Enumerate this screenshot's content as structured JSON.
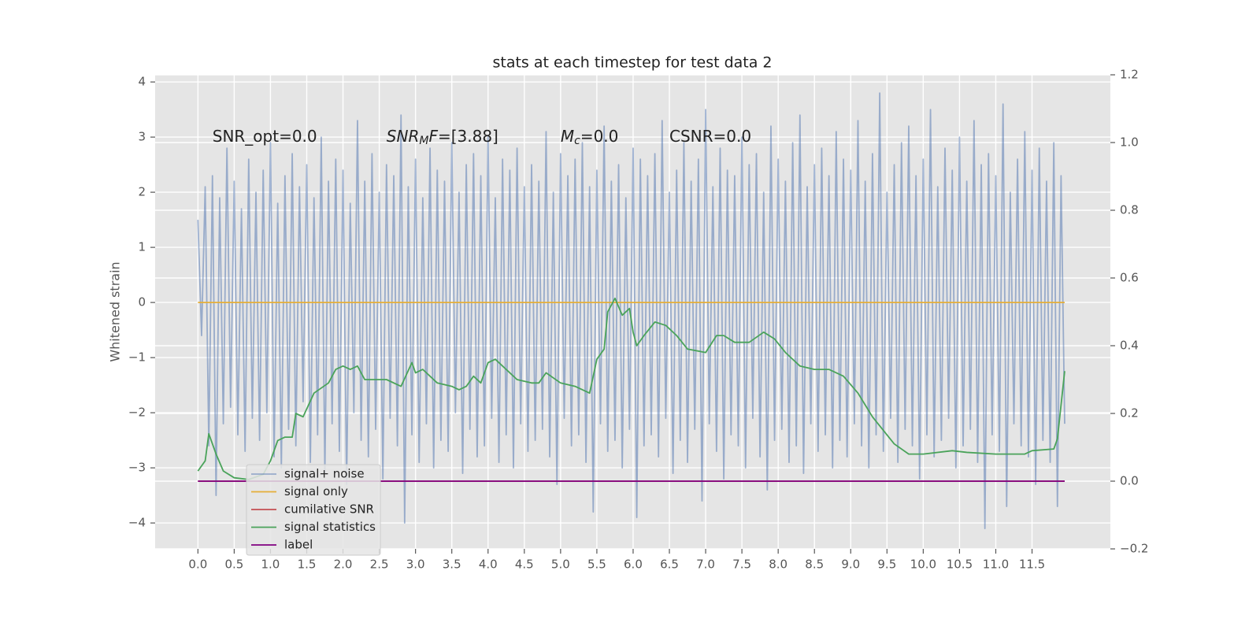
{
  "chart_data": {
    "type": "line",
    "title": "stats at each timestep for test data 2",
    "ylabel": "Whitened strain",
    "xlim": [
      -0.59,
      12.58
    ],
    "ylim": [
      -4.47,
      4.13
    ],
    "y2lim": [
      -0.2,
      1.2
    ],
    "xticks": [
      {
        "value": 0,
        "label": "0.0"
      },
      {
        "value": 0.5,
        "label": "0.5"
      },
      {
        "value": 1,
        "label": "1.0"
      },
      {
        "value": 1.5,
        "label": "1.5"
      },
      {
        "value": 2,
        "label": "2.0"
      },
      {
        "value": 2.5,
        "label": "2.5"
      },
      {
        "value": 3,
        "label": "3.0"
      },
      {
        "value": 3.5,
        "label": "3.5"
      },
      {
        "value": 4,
        "label": "4.0"
      },
      {
        "value": 4.5,
        "label": "4.5"
      },
      {
        "value": 5,
        "label": "5.0"
      },
      {
        "value": 5.5,
        "label": "5.5"
      },
      {
        "value": 6,
        "label": "6.0"
      },
      {
        "value": 6.5,
        "label": "6.5"
      },
      {
        "value": 7,
        "label": "7.0"
      },
      {
        "value": 7.5,
        "label": "7.5"
      },
      {
        "value": 8,
        "label": "8.0"
      },
      {
        "value": 8.5,
        "label": "8.5"
      },
      {
        "value": 9,
        "label": "9.0"
      },
      {
        "value": 9.5,
        "label": "9.5"
      },
      {
        "value": 10,
        "label": "10.0"
      },
      {
        "value": 10.5,
        "label": "10.5"
      },
      {
        "value": 11,
        "label": "11.0"
      },
      {
        "value": 11.5,
        "label": "11.5"
      }
    ],
    "yticks": [
      {
        "value": -4,
        "label": "−4"
      },
      {
        "value": -3,
        "label": "−3"
      },
      {
        "value": -2,
        "label": "−2"
      },
      {
        "value": -1,
        "label": "−1"
      },
      0,
      1,
      2,
      3,
      4
    ],
    "y2ticks": [
      {
        "value": -0.2,
        "label": "−0.2"
      },
      {
        "value": 0,
        "label": "0.0"
      },
      0.2,
      0.4,
      0.6,
      0.8,
      {
        "value": 1,
        "label": "1.0"
      },
      1.2
    ],
    "grid": true,
    "annotations": [
      {
        "x": 0.2,
        "y": 3,
        "parts": [
          {
            "text": "SNR_opt=0.0"
          }
        ]
      },
      {
        "x": 2.6,
        "y": 3,
        "parts": [
          {
            "text": "SNR",
            "italic": true
          },
          {
            "text": "M",
            "italic": true,
            "sub": true
          },
          {
            "text": "F",
            "italic": true
          },
          {
            "text": "=[3.88]"
          }
        ]
      },
      {
        "x": 5.0,
        "y": 3,
        "parts": [
          {
            "text": "M",
            "italic": true
          },
          {
            "text": "c",
            "italic": true,
            "sub": true
          },
          {
            "text": "=0.0"
          }
        ]
      },
      {
        "x": 6.5,
        "y": 3,
        "parts": [
          {
            "text": "CSNR=0.0"
          }
        ]
      }
    ],
    "series": [
      {
        "name": "signal+ noise",
        "color": "#4c72b0",
        "opacity": 0.5,
        "x": [
          0,
          0.05,
          0.1,
          0.15,
          0.2,
          0.25,
          0.3,
          0.35,
          0.4,
          0.45,
          0.5,
          0.55,
          0.6,
          0.65,
          0.7,
          0.75,
          0.8,
          0.85,
          0.9,
          0.95,
          1,
          1.05,
          1.1,
          1.15,
          1.2,
          1.25,
          1.3,
          1.35,
          1.4,
          1.45,
          1.5,
          1.55,
          1.6,
          1.65,
          1.7,
          1.75,
          1.8,
          1.85,
          1.9,
          1.95,
          2,
          2.05,
          2.1,
          2.15,
          2.2,
          2.25,
          2.3,
          2.35,
          2.4,
          2.45,
          2.5,
          2.55,
          2.6,
          2.65,
          2.7,
          2.75,
          2.8,
          2.85,
          2.9,
          2.95,
          3,
          3.05,
          3.1,
          3.15,
          3.2,
          3.25,
          3.3,
          3.35,
          3.4,
          3.45,
          3.5,
          3.55,
          3.6,
          3.65,
          3.7,
          3.75,
          3.8,
          3.85,
          3.9,
          3.95,
          4,
          4.05,
          4.1,
          4.15,
          4.2,
          4.25,
          4.3,
          4.35,
          4.4,
          4.45,
          4.5,
          4.55,
          4.6,
          4.65,
          4.7,
          4.75,
          4.8,
          4.85,
          4.9,
          4.95,
          5,
          5.05,
          5.1,
          5.15,
          5.2,
          5.25,
          5.3,
          5.35,
          5.4,
          5.45,
          5.5,
          5.55,
          5.6,
          5.65,
          5.7,
          5.75,
          5.8,
          5.85,
          5.9,
          5.95,
          6,
          6.05,
          6.1,
          6.15,
          6.2,
          6.25,
          6.3,
          6.35,
          6.4,
          6.45,
          6.5,
          6.55,
          6.6,
          6.65,
          6.7,
          6.75,
          6.8,
          6.85,
          6.9,
          6.95,
          7,
          7.05,
          7.1,
          7.15,
          7.2,
          7.25,
          7.3,
          7.35,
          7.4,
          7.45,
          7.5,
          7.55,
          7.6,
          7.65,
          7.7,
          7.75,
          7.8,
          7.85,
          7.9,
          7.95,
          8,
          8.05,
          8.1,
          8.15,
          8.2,
          8.25,
          8.3,
          8.35,
          8.4,
          8.45,
          8.5,
          8.55,
          8.6,
          8.65,
          8.7,
          8.75,
          8.8,
          8.85,
          8.9,
          8.95,
          9,
          9.05,
          9.1,
          9.15,
          9.2,
          9.25,
          9.3,
          9.35,
          9.4,
          9.45,
          9.5,
          9.55,
          9.6,
          9.65,
          9.7,
          9.75,
          9.8,
          9.85,
          9.9,
          9.95,
          10,
          10.05,
          10.1,
          10.15,
          10.2,
          10.25,
          10.3,
          10.35,
          10.4,
          10.45,
          10.5,
          10.55,
          10.6,
          10.65,
          10.7,
          10.75,
          10.8,
          10.85,
          10.9,
          10.95,
          11,
          11.05,
          11.1,
          11.15,
          11.2,
          11.25,
          11.3,
          11.35,
          11.4,
          11.45,
          11.5,
          11.55,
          11.6,
          11.65,
          11.7,
          11.75,
          11.8,
          11.85,
          11.9,
          11.95
        ],
        "values": [
          1.5,
          -0.6,
          2.1,
          -2.6,
          2.3,
          -3.5,
          1.9,
          -2.2,
          2.8,
          -1.9,
          2.2,
          -2.4,
          1.7,
          -2.7,
          2.6,
          -2.1,
          2.0,
          -2.5,
          2.4,
          -2.0,
          2.9,
          -2.8,
          1.8,
          -3.0,
          2.3,
          -2.3,
          2.7,
          -2.6,
          2.1,
          -1.8,
          2.5,
          -2.9,
          1.9,
          -2.4,
          3.0,
          -3.1,
          2.2,
          -2.2,
          2.6,
          -2.7,
          2.4,
          -3.3,
          1.8,
          -2.0,
          3.3,
          -2.5,
          2.2,
          -2.8,
          2.7,
          -2.3,
          2.0,
          -3.2,
          2.5,
          -2.1,
          2.3,
          -2.6,
          3.4,
          -4.0,
          2.1,
          -2.4,
          2.6,
          -2.9,
          1.9,
          -2.2,
          2.8,
          -3.0,
          2.4,
          -2.5,
          2.2,
          -2.7,
          2.9,
          -2.0,
          2.0,
          -3.1,
          2.5,
          -2.3,
          2.7,
          -2.8,
          2.3,
          -2.6,
          3.0,
          -2.1,
          1.9,
          -2.9,
          2.6,
          -2.4,
          2.4,
          -3.0,
          2.8,
          -2.2,
          2.1,
          -2.7,
          2.5,
          -2.5,
          2.2,
          -2.3,
          3.1,
          -2.8,
          2.0,
          -3.3,
          2.7,
          -2.1,
          2.3,
          -2.6,
          2.6,
          -2.4,
          2.9,
          -2.9,
          2.1,
          -3.8,
          2.4,
          -2.2,
          3.2,
          -2.7,
          2.2,
          -2.5,
          2.5,
          -3.0,
          1.9,
          -2.3,
          2.8,
          -3.9,
          2.6,
          -2.6,
          2.3,
          -2.4,
          2.7,
          -2.8,
          3.3,
          -2.1,
          2.0,
          -3.1,
          2.4,
          -2.5,
          2.9,
          -2.9,
          2.2,
          -2.3,
          2.6,
          -3.6,
          3.5,
          -2.2,
          2.1,
          -2.7,
          2.8,
          -3.2,
          2.4,
          -2.4,
          2.3,
          -2.6,
          3.0,
          -3.0,
          2.5,
          -2.1,
          2.7,
          -2.8,
          2.0,
          -3.4,
          3.2,
          -2.5,
          2.6,
          -2.3,
          2.2,
          -2.9,
          2.9,
          -2.6,
          3.4,
          -3.1,
          2.1,
          -2.2,
          2.5,
          -2.7,
          2.8,
          -2.4,
          2.3,
          -3.0,
          3.1,
          -2.5,
          2.6,
          -2.8,
          2.4,
          -2.2,
          3.3,
          -2.6,
          2.2,
          -3.0,
          2.7,
          -2.4,
          3.8,
          -2.7,
          2.0,
          -2.1,
          2.5,
          -2.9,
          2.9,
          -2.3,
          3.2,
          -2.6,
          2.3,
          -3.2,
          2.6,
          -2.4,
          3.5,
          -2.8,
          2.1,
          -2.5,
          2.8,
          -2.1,
          2.4,
          -3.0,
          3.0,
          -2.6,
          2.2,
          -2.3,
          3.3,
          -2.9,
          2.5,
          -4.1,
          2.7,
          -2.4,
          2.3,
          -2.7,
          3.6,
          -3.7,
          2.0,
          -2.2,
          2.6,
          -2.6,
          3.1,
          -2.8,
          2.4,
          -3.3,
          2.8,
          -2.5,
          2.2,
          -2.9,
          2.9,
          -3.7,
          2.3,
          -2.2
        ]
      },
      {
        "name": "signal only",
        "color": "#e5ae38",
        "x": [
          0,
          11.95
        ],
        "values": [
          0,
          0
        ]
      },
      {
        "name": "cumilative SNR",
        "color": "#c44e52",
        "axis": "y2",
        "x": [
          0,
          11.95
        ],
        "values": [
          0,
          0
        ]
      },
      {
        "name": "signal statistics",
        "color": "#4aa35a",
        "axis": "y2",
        "x": [
          0,
          0.1,
          0.15,
          0.25,
          0.35,
          0.5,
          0.7,
          0.9,
          1.0,
          1.1,
          1.2,
          1.3,
          1.35,
          1.45,
          1.6,
          1.8,
          1.9,
          2.0,
          2.1,
          2.2,
          2.3,
          2.5,
          2.6,
          2.8,
          2.95,
          3.0,
          3.1,
          3.3,
          3.5,
          3.6,
          3.7,
          3.8,
          3.9,
          4.0,
          4.1,
          4.2,
          4.4,
          4.6,
          4.7,
          4.8,
          5.0,
          5.2,
          5.4,
          5.5,
          5.6,
          5.65,
          5.75,
          5.85,
          5.95,
          6.0,
          6.05,
          6.15,
          6.3,
          6.45,
          6.6,
          6.75,
          7.0,
          7.15,
          7.25,
          7.4,
          7.6,
          7.8,
          7.95,
          8.1,
          8.3,
          8.5,
          8.7,
          8.9,
          9.1,
          9.3,
          9.6,
          9.8,
          10.0,
          10.4,
          10.6,
          11.0,
          11.4,
          11.5,
          11.8,
          11.85,
          11.95
        ],
        "values": [
          0.03,
          0.06,
          0.14,
          0.08,
          0.03,
          0.01,
          0.005,
          0.02,
          0.06,
          0.12,
          0.13,
          0.13,
          0.2,
          0.19,
          0.26,
          0.29,
          0.33,
          0.34,
          0.33,
          0.34,
          0.3,
          0.3,
          0.3,
          0.28,
          0.35,
          0.32,
          0.33,
          0.29,
          0.28,
          0.27,
          0.28,
          0.31,
          0.29,
          0.35,
          0.36,
          0.34,
          0.3,
          0.29,
          0.29,
          0.32,
          0.29,
          0.28,
          0.26,
          0.36,
          0.39,
          0.5,
          0.54,
          0.49,
          0.51,
          0.44,
          0.4,
          0.43,
          0.47,
          0.46,
          0.43,
          0.39,
          0.38,
          0.43,
          0.43,
          0.41,
          0.41,
          0.44,
          0.42,
          0.38,
          0.34,
          0.33,
          0.33,
          0.31,
          0.26,
          0.19,
          0.11,
          0.08,
          0.08,
          0.09,
          0.085,
          0.08,
          0.08,
          0.09,
          0.095,
          0.125,
          0.325
        ]
      },
      {
        "name": "label",
        "color": "#800080",
        "axis": "y2",
        "x": [
          0,
          11.95
        ],
        "values": [
          0,
          0
        ]
      }
    ]
  }
}
